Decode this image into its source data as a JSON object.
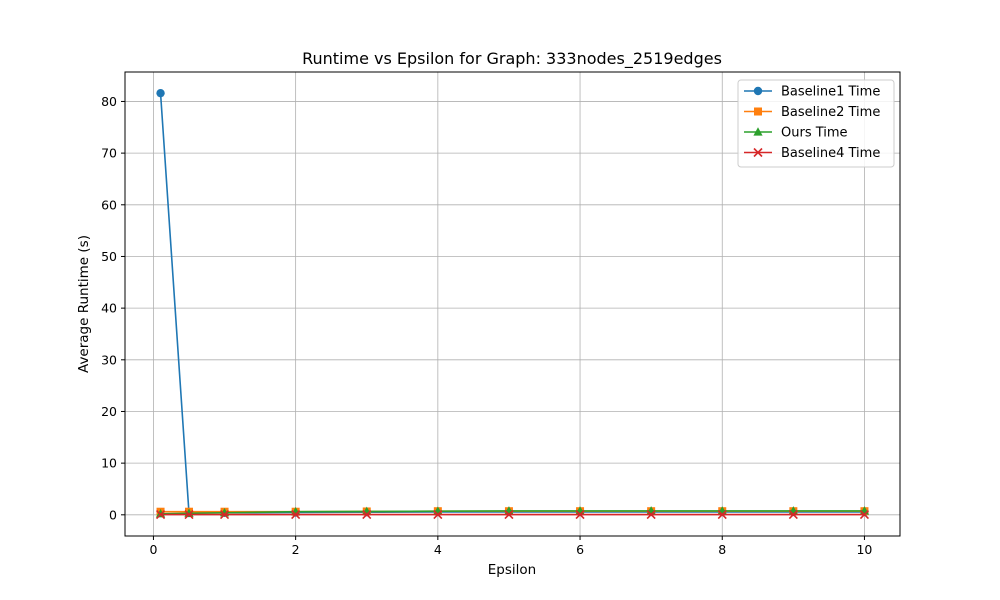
{
  "chart_data": {
    "type": "line",
    "title": "Runtime vs Epsilon for Graph: 333nodes_2519edges",
    "xlabel": "Epsilon",
    "ylabel": "Average Runtime (s)",
    "xlim": [
      -0.4,
      10.5
    ],
    "ylim": [
      -4.1,
      85.7
    ],
    "xticks": [
      0,
      2,
      4,
      6,
      8,
      10
    ],
    "yticks": [
      0,
      10,
      20,
      30,
      40,
      50,
      60,
      70,
      80
    ],
    "grid": true,
    "legend_position": "top-right",
    "x": [
      0.1,
      0.5,
      1,
      2,
      3,
      4,
      5,
      6,
      7,
      8,
      9,
      10
    ],
    "series": [
      {
        "name": "Baseline1 Time",
        "color": "#1f77b4",
        "marker": "circle",
        "values": [
          81.6,
          0.35,
          0.4,
          0.45,
          0.5,
          0.55,
          0.55,
          0.55,
          0.55,
          0.55,
          0.55,
          0.55
        ]
      },
      {
        "name": "Baseline2 Time",
        "color": "#ff7f0e",
        "marker": "square",
        "values": [
          0.6,
          0.6,
          0.6,
          0.6,
          0.65,
          0.7,
          0.7,
          0.7,
          0.7,
          0.7,
          0.7,
          0.7
        ]
      },
      {
        "name": "Ours Time",
        "color": "#2ca02c",
        "marker": "triangle",
        "values": [
          0.2,
          0.3,
          0.4,
          0.6,
          0.65,
          0.7,
          0.75,
          0.75,
          0.75,
          0.75,
          0.75,
          0.75
        ]
      },
      {
        "name": "Baseline4 Time",
        "color": "#d62728",
        "marker": "x",
        "values": [
          0.05,
          0.05,
          0.05,
          0.05,
          0.05,
          0.05,
          0.05,
          0.05,
          0.05,
          0.05,
          0.05,
          0.05
        ]
      }
    ]
  }
}
